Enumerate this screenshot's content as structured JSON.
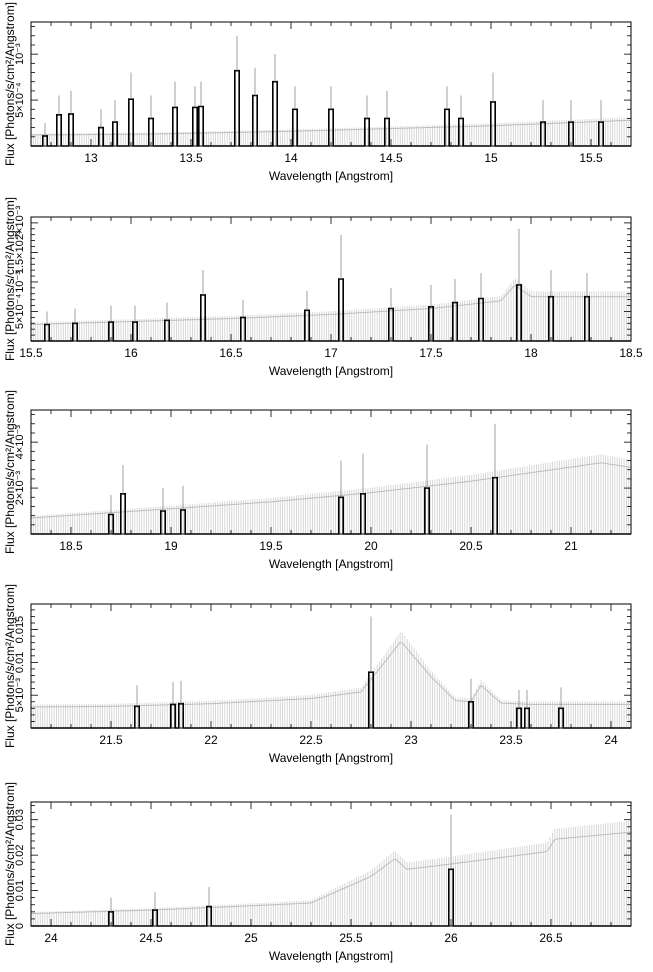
{
  "chart_data": [
    {
      "type": "line",
      "xlabel": "Wavelength [Angstrom]",
      "ylabel": "Flux [Photons/s/cm²/Angstrom]",
      "xlim": [
        12.7,
        15.7
      ],
      "ylim": [
        0,
        0.00135
      ],
      "xticks": [
        13,
        13.5,
        14,
        14.5,
        15,
        15.5
      ],
      "xtick_labels": [
        "13",
        "13.5",
        "14",
        "14.5",
        "15",
        "15.5"
      ],
      "yticks": [
        0.0005,
        0.001
      ],
      "ytick_labels": [
        "5×10⁻⁴",
        "10⁻³"
      ],
      "continuum": {
        "x": [
          12.7,
          13.3,
          14.0,
          14.5,
          15.0,
          15.7
        ],
        "y": [
          0.00012,
          0.00013,
          0.00016,
          0.00019,
          0.00022,
          0.00028
        ]
      },
      "lines": [
        {
          "x": 12.77,
          "y": 0.00011,
          "err_hi": 0.00025
        },
        {
          "x": 12.84,
          "y": 0.00034,
          "err_hi": 0.00055
        },
        {
          "x": 12.9,
          "y": 0.00035,
          "err_hi": 0.0006
        },
        {
          "x": 13.05,
          "y": 0.0002,
          "err_hi": 0.0004
        },
        {
          "x": 13.12,
          "y": 0.00026,
          "err_hi": 0.0005
        },
        {
          "x": 13.2,
          "y": 0.00051,
          "err_hi": 0.0008
        },
        {
          "x": 13.3,
          "y": 0.0003,
          "err_hi": 0.00055
        },
        {
          "x": 13.42,
          "y": 0.00042,
          "err_hi": 0.0007
        },
        {
          "x": 13.52,
          "y": 0.00042,
          "err_hi": 0.00065
        },
        {
          "x": 13.55,
          "y": 0.00043,
          "err_hi": 0.0007
        },
        {
          "x": 13.73,
          "y": 0.00082,
          "err_hi": 0.0012
        },
        {
          "x": 13.82,
          "y": 0.00055,
          "err_hi": 0.00085
        },
        {
          "x": 13.92,
          "y": 0.0007,
          "err_hi": 0.001
        },
        {
          "x": 14.02,
          "y": 0.0004,
          "err_hi": 0.00065
        },
        {
          "x": 14.2,
          "y": 0.0004,
          "err_hi": 0.00065
        },
        {
          "x": 14.38,
          "y": 0.0003,
          "err_hi": 0.00055
        },
        {
          "x": 14.48,
          "y": 0.0003,
          "err_hi": 0.0006
        },
        {
          "x": 14.78,
          "y": 0.0004,
          "err_hi": 0.00065
        },
        {
          "x": 14.85,
          "y": 0.0003,
          "err_hi": 0.00055
        },
        {
          "x": 15.01,
          "y": 0.00048,
          "err_hi": 0.0008
        },
        {
          "x": 15.26,
          "y": 0.00026,
          "err_hi": 0.0005
        },
        {
          "x": 15.4,
          "y": 0.00026,
          "err_hi": 0.0005
        },
        {
          "x": 15.55,
          "y": 0.00026,
          "err_hi": 0.0005
        }
      ]
    },
    {
      "type": "line",
      "xlabel": "Wavelength [Angstrom]",
      "ylabel": "Flux [Photons/s/cm²/Angstrom]",
      "xlim": [
        15.5,
        18.5
      ],
      "ylim": [
        0,
        0.0021
      ],
      "xticks": [
        15.5,
        16,
        16.5,
        17,
        17.5,
        18,
        18.5
      ],
      "xtick_labels": [
        "15.5",
        "16",
        "16.5",
        "17",
        "17.5",
        "18",
        "18.5"
      ],
      "yticks": [
        0.0005,
        0.001,
        0.0015,
        0.002
      ],
      "ytick_labels": [
        "5×10⁻⁴",
        "10⁻³",
        "1.5×10⁻³",
        "2×10⁻³"
      ],
      "continuum": {
        "x": [
          15.5,
          16.5,
          17.0,
          17.5,
          17.85,
          17.92,
          18.0,
          18.5
        ],
        "y": [
          0.00028,
          0.00038,
          0.00045,
          0.00055,
          0.00068,
          0.00095,
          0.00075,
          0.00075
        ]
      },
      "lines": [
        {
          "x": 15.58,
          "y": 0.00028,
          "err_hi": 0.0005
        },
        {
          "x": 15.72,
          "y": 0.0003,
          "err_hi": 0.00055
        },
        {
          "x": 15.9,
          "y": 0.00032,
          "err_hi": 0.0006
        },
        {
          "x": 16.02,
          "y": 0.00032,
          "err_hi": 0.0006
        },
        {
          "x": 16.18,
          "y": 0.00035,
          "err_hi": 0.00065
        },
        {
          "x": 16.36,
          "y": 0.00078,
          "err_hi": 0.0012
        },
        {
          "x": 16.56,
          "y": 0.0004,
          "err_hi": 0.0007
        },
        {
          "x": 16.88,
          "y": 0.00052,
          "err_hi": 0.00085
        },
        {
          "x": 17.05,
          "y": 0.00105,
          "err_hi": 0.0018
        },
        {
          "x": 17.3,
          "y": 0.00055,
          "err_hi": 0.0009
        },
        {
          "x": 17.5,
          "y": 0.00058,
          "err_hi": 0.00095
        },
        {
          "x": 17.62,
          "y": 0.00065,
          "err_hi": 0.00105
        },
        {
          "x": 17.75,
          "y": 0.00072,
          "err_hi": 0.00115
        },
        {
          "x": 17.94,
          "y": 0.00095,
          "err_hi": 0.0019
        },
        {
          "x": 18.1,
          "y": 0.00075,
          "err_hi": 0.0012
        },
        {
          "x": 18.28,
          "y": 0.00075,
          "err_hi": 0.00115
        }
      ]
    },
    {
      "type": "line",
      "xlabel": "Wavelength [Angstrom]",
      "ylabel": "Flux [Photons/s/cm²/Angstrom]",
      "xlim": [
        18.3,
        21.3
      ],
      "ylim": [
        0,
        0.0054
      ],
      "xticks": [
        18.5,
        19,
        19.5,
        20,
        20.5,
        21
      ],
      "xtick_labels": [
        "18.5",
        "19",
        "19.5",
        "20",
        "20.5",
        "21"
      ],
      "yticks": [
        0.002,
        0.004
      ],
      "ytick_labels": [
        "2×10⁻³",
        "4×10⁻³"
      ],
      "continuum": {
        "x": [
          18.3,
          19.0,
          19.5,
          20.0,
          20.5,
          21.15,
          21.3
        ],
        "y": [
          0.0007,
          0.0011,
          0.0014,
          0.0018,
          0.0023,
          0.0031,
          0.0029
        ]
      },
      "lines": [
        {
          "x": 18.7,
          "y": 0.00085,
          "err_hi": 0.0017
        },
        {
          "x": 18.76,
          "y": 0.00175,
          "err_hi": 0.003
        },
        {
          "x": 18.96,
          "y": 0.001,
          "err_hi": 0.002
        },
        {
          "x": 19.06,
          "y": 0.00105,
          "err_hi": 0.0021
        },
        {
          "x": 19.85,
          "y": 0.0016,
          "err_hi": 0.0032
        },
        {
          "x": 19.96,
          "y": 0.00175,
          "err_hi": 0.0035
        },
        {
          "x": 20.28,
          "y": 0.002,
          "err_hi": 0.0039
        },
        {
          "x": 20.62,
          "y": 0.00245,
          "err_hi": 0.0048
        }
      ]
    },
    {
      "type": "line",
      "xlabel": "Wavelength [Angstrom]",
      "ylabel": "Flux [Photons/s/cm²/Angstrom]",
      "xlim": [
        21.1,
        24.1
      ],
      "ylim": [
        0,
        0.0189
      ],
      "xticks": [
        21.5,
        22,
        22.5,
        23,
        23.5,
        24
      ],
      "xtick_labels": [
        "21.5",
        "22",
        "22.5",
        "23",
        "23.5",
        "24"
      ],
      "yticks": [
        0.005,
        0.01,
        0.015
      ],
      "ytick_labels": [
        "5×10⁻³",
        "0.01",
        "0.015"
      ],
      "continuum": {
        "x": [
          21.1,
          21.5,
          22.0,
          22.5,
          22.75,
          22.95,
          23.1,
          23.22,
          23.3,
          23.35,
          23.45,
          23.6,
          24.1
        ],
        "y": [
          0.0032,
          0.0033,
          0.0037,
          0.0045,
          0.0055,
          0.0132,
          0.0078,
          0.0042,
          0.004,
          0.0065,
          0.0038,
          0.0036,
          0.0036
        ]
      },
      "lines": [
        {
          "x": 21.63,
          "y": 0.0033,
          "err_hi": 0.0065
        },
        {
          "x": 21.81,
          "y": 0.0036,
          "err_hi": 0.007
        },
        {
          "x": 21.85,
          "y": 0.0037,
          "err_hi": 0.0072
        },
        {
          "x": 22.8,
          "y": 0.0085,
          "err_hi": 0.017
        },
        {
          "x": 23.3,
          "y": 0.004,
          "err_hi": 0.0075
        },
        {
          "x": 23.54,
          "y": 0.003,
          "err_hi": 0.0058
        },
        {
          "x": 23.58,
          "y": 0.003,
          "err_hi": 0.0058
        },
        {
          "x": 23.75,
          "y": 0.003,
          "err_hi": 0.0062
        }
      ]
    },
    {
      "type": "line",
      "xlabel": "Wavelength [Angstrom]",
      "ylabel": "Flux [Photons/s/cm²/Angstrom]",
      "xlim": [
        23.9,
        26.9
      ],
      "ylim": [
        0,
        0.035
      ],
      "xticks": [
        24,
        24.5,
        25,
        25.5,
        26,
        26.5
      ],
      "xtick_labels": [
        "24",
        "24.5",
        "25",
        "25.5",
        "26",
        "26.5"
      ],
      "yticks": [
        0,
        0.01,
        0.02,
        0.03
      ],
      "ytick_labels": [
        "0",
        "0.01",
        "0.02",
        "0.03"
      ],
      "continuum": {
        "x": [
          23.9,
          24.5,
          25.0,
          25.3,
          25.6,
          25.72,
          25.78,
          26.0,
          26.48,
          26.52,
          26.9
        ],
        "y": [
          0.0035,
          0.0045,
          0.0057,
          0.0065,
          0.014,
          0.019,
          0.016,
          0.0175,
          0.021,
          0.0245,
          0.0265
        ]
      },
      "lines": [
        {
          "x": 24.3,
          "y": 0.004,
          "err_hi": 0.008
        },
        {
          "x": 24.52,
          "y": 0.0045,
          "err_hi": 0.0095
        },
        {
          "x": 24.79,
          "y": 0.0055,
          "err_hi": 0.011
        },
        {
          "x": 26.0,
          "y": 0.016,
          "err_hi": 0.0315
        }
      ]
    }
  ]
}
